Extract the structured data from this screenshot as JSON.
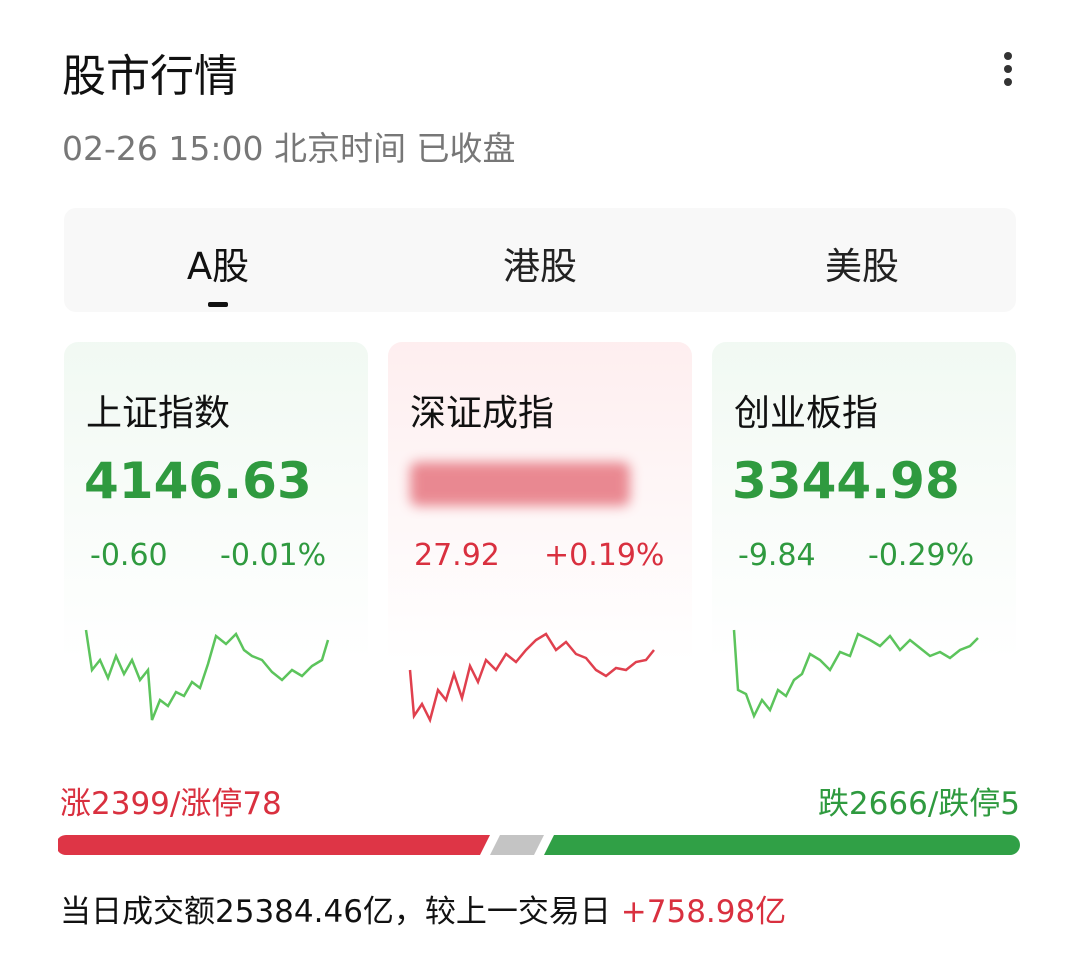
{
  "header": {
    "title": "股市行情",
    "subtitle": "02-26 15:00 北京时间 已收盘"
  },
  "tabs": [
    "A股",
    "港股",
    "美股"
  ],
  "cards": [
    {
      "name": "上证指数",
      "value": "4146.63",
      "change": "-0.60",
      "pct": "-0.01%",
      "trend": "down"
    },
    {
      "name": "深证成指",
      "value": null,
      "change": "27.92",
      "pct": "+0.19%",
      "trend": "up"
    },
    {
      "name": "创业板指",
      "value": "3344.98",
      "change": "-9.84",
      "pct": "-0.29%",
      "trend": "down"
    }
  ],
  "breadth": {
    "up": "涨2399/涨停78",
    "down": "跌2666/跌停5"
  },
  "footer": {
    "text": "当日成交额25384.46亿，较上一交易日",
    "change": "+758.98亿"
  }
}
